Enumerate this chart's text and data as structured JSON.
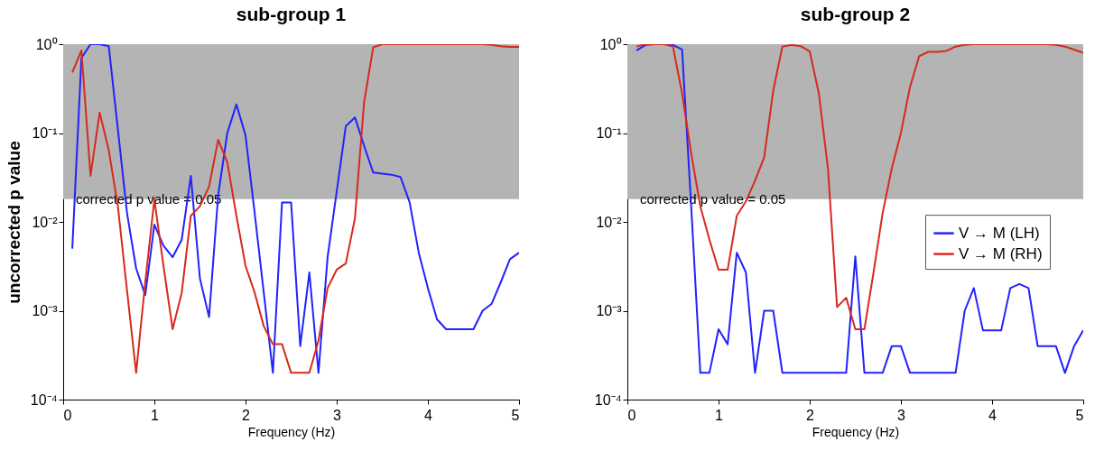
{
  "chart_data": [
    {
      "type": "line",
      "title": "sub-group 1",
      "xlabel": "Frequency (Hz)",
      "ylabel": "uncorrected p value",
      "log": true,
      "line_style": "solid",
      "legend": false,
      "x": [
        0.1,
        0.2,
        0.3,
        0.4,
        0.5,
        0.6,
        0.7,
        0.8,
        0.9,
        1.0,
        1.1,
        1.2,
        1.3,
        1.4,
        1.5,
        1.6,
        1.7,
        1.8,
        1.9,
        2.0,
        2.1,
        2.2,
        2.3,
        2.4,
        2.5,
        2.6,
        2.7,
        2.8,
        2.9,
        3.0,
        3.1,
        3.2,
        3.3,
        3.4,
        3.5,
        3.6,
        3.7,
        3.8,
        3.9,
        4.0,
        4.1,
        4.2,
        4.3,
        4.4,
        4.5,
        4.6,
        4.7,
        4.8,
        4.9,
        5.0
      ],
      "series": [
        {
          "color": "#2222ff",
          "values": [
            0.005,
            0.7,
            1,
            1,
            0.95,
            0.11,
            0.0126,
            0.003,
            0.0015,
            0.0093,
            0.0054,
            0.004,
            0.0063,
            0.033,
            0.0023,
            0.00085,
            0.02,
            0.1,
            0.21,
            0.094,
            0.0126,
            0.0016,
            0.0002,
            0.0165,
            0.0165,
            0.0004,
            0.0027,
            0.0002,
            0.004,
            0.022,
            0.12,
            0.15,
            0.072,
            0.036,
            0.035,
            0.034,
            0.032,
            0.0166,
            0.0045,
            0.0018,
            0.0008,
            0.00062,
            0.00062,
            0.00062,
            0.00062,
            0.001,
            0.0012,
            0.0021,
            0.0038,
            0.0045
          ]
        },
        {
          "color": "#d62a1e",
          "values": [
            0.48,
            0.85,
            0.033,
            0.17,
            0.064,
            0.015,
            0.0017,
            0.0002,
            0.0021,
            0.018,
            0.0032,
            0.00062,
            0.0016,
            0.0117,
            0.015,
            0.025,
            0.084,
            0.047,
            0.0117,
            0.0032,
            0.0016,
            0.00067,
            0.00042,
            0.00042,
            0.0002,
            0.0002,
            0.0002,
            0.00046,
            0.0018,
            0.0029,
            0.0034,
            0.011,
            0.22,
            0.92,
            1,
            1,
            1,
            1,
            1,
            1,
            1,
            1,
            1,
            1,
            1,
            1,
            0.98,
            0.95,
            0.93,
            0.93
          ]
        }
      ],
      "xlim": [
        0,
        5
      ],
      "xticks": [
        0,
        1,
        2,
        3,
        4,
        5
      ],
      "ylim": [
        0.0001,
        1
      ],
      "yticks": [
        {
          "value": 0.0001,
          "label": "10⁻⁴"
        },
        {
          "value": 0.001,
          "label": "10⁻³"
        },
        {
          "value": 0.01,
          "label": "10⁻²"
        },
        {
          "value": 0.1,
          "label": "10⁻¹"
        },
        {
          "value": 1,
          "label": "10⁰"
        }
      ],
      "bands": [
        {
          "axis": "y",
          "from": 0.018,
          "to": 1,
          "label": "corrected p value = 0.05",
          "color": "#b4b4b4"
        }
      ]
    },
    {
      "type": "line",
      "title": "sub-group 2",
      "xlabel": "Frequency (Hz)",
      "log": true,
      "line_style": "solid",
      "legend": "right",
      "x": [
        0.1,
        0.2,
        0.3,
        0.4,
        0.5,
        0.6,
        0.7,
        0.8,
        0.9,
        1.0,
        1.1,
        1.2,
        1.3,
        1.4,
        1.5,
        1.6,
        1.7,
        1.8,
        1.9,
        2.0,
        2.1,
        2.2,
        2.3,
        2.4,
        2.5,
        2.6,
        2.7,
        2.8,
        2.9,
        3.0,
        3.1,
        3.2,
        3.3,
        3.4,
        3.5,
        3.6,
        3.7,
        3.8,
        3.9,
        4.0,
        4.1,
        4.2,
        4.3,
        4.4,
        4.5,
        4.6,
        4.7,
        4.8,
        4.9,
        5.0
      ],
      "series": [
        {
          "name": "V → M (LH)",
          "color": "#2222ff",
          "values": [
            0.85,
            0.98,
            1,
            1,
            0.98,
            0.87,
            0.015,
            0.0002,
            0.0002,
            0.00062,
            0.00042,
            0.0045,
            0.0027,
            0.0002,
            0.001,
            0.001,
            0.0002,
            0.0002,
            0.0002,
            0.0002,
            0.0002,
            0.0002,
            0.0002,
            0.0002,
            0.0041,
            0.0002,
            0.0002,
            0.0002,
            0.0004,
            0.0004,
            0.0002,
            0.0002,
            0.0002,
            0.0002,
            0.0002,
            0.0002,
            0.001,
            0.0018,
            0.0006,
            0.0006,
            0.0006,
            0.0018,
            0.002,
            0.0018,
            0.0004,
            0.0004,
            0.0004,
            0.0002,
            0.0004,
            0.0006
          ]
        },
        {
          "name": "V → M (RH)",
          "color": "#d62a1e",
          "values": [
            0.94,
            1,
            1,
            1,
            0.94,
            0.28,
            0.059,
            0.015,
            0.0063,
            0.0029,
            0.0029,
            0.0117,
            0.017,
            0.029,
            0.053,
            0.3,
            0.94,
            0.98,
            0.95,
            0.83,
            0.28,
            0.04,
            0.0011,
            0.0014,
            0.00062,
            0.00062,
            0.0027,
            0.0126,
            0.04,
            0.1,
            0.33,
            0.73,
            0.82,
            0.82,
            0.84,
            0.94,
            0.98,
            1,
            1,
            1,
            1,
            1,
            1,
            1,
            1,
            1,
            0.98,
            0.94,
            0.87,
            0.8
          ]
        }
      ],
      "xlim": [
        0,
        5
      ],
      "xticks": [
        0,
        1,
        2,
        3,
        4,
        5
      ],
      "ylim": [
        0.0001,
        1
      ],
      "yticks": [
        {
          "value": 0.0001,
          "label": "10⁻⁴"
        },
        {
          "value": 0.001,
          "label": "10⁻³"
        },
        {
          "value": 0.01,
          "label": "10⁻²"
        },
        {
          "value": 0.1,
          "label": "10⁻¹"
        },
        {
          "value": 1,
          "label": "10⁰"
        }
      ],
      "bands": [
        {
          "axis": "y",
          "from": 0.018,
          "to": 1,
          "label": "corrected p value = 0.05",
          "color": "#b4b4b4"
        }
      ]
    }
  ]
}
